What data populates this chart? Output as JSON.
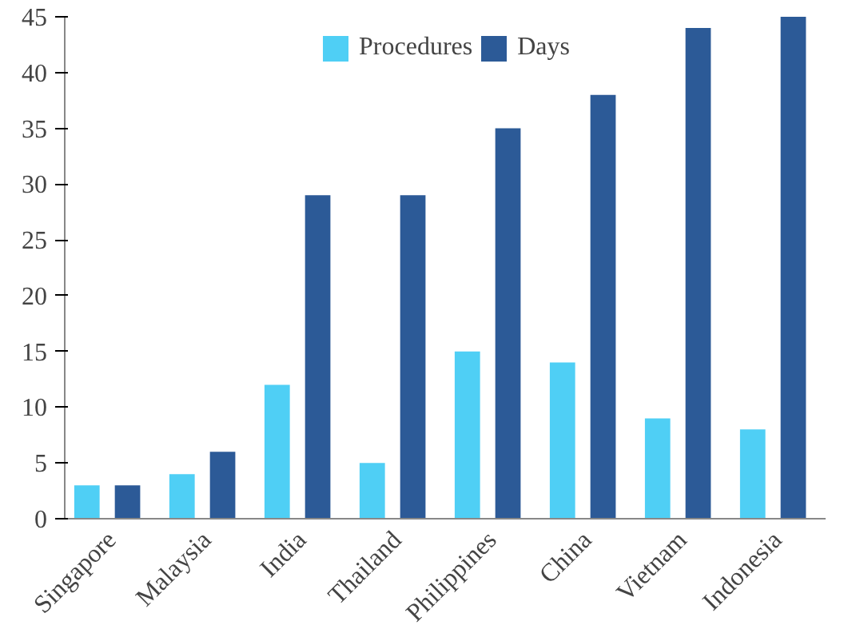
{
  "chart_data": {
    "type": "bar",
    "categories": [
      "Singapore",
      "Malaysia",
      "India",
      "Thailand",
      "Philippines",
      "China",
      "Vietnam",
      "Indonesia"
    ],
    "series": [
      {
        "name": "Procedures",
        "color": "#4fcff5",
        "values": [
          3,
          4,
          12,
          5,
          15,
          14,
          9,
          8
        ]
      },
      {
        "name": "Days",
        "color": "#2c5a97",
        "values": [
          3,
          6,
          29,
          29,
          35,
          38,
          44,
          45
        ]
      }
    ],
    "ylim": [
      0,
      45
    ],
    "yticks": [
      0,
      5,
      10,
      15,
      20,
      25,
      30,
      35,
      40,
      45
    ],
    "grid": false,
    "legend": "top"
  }
}
